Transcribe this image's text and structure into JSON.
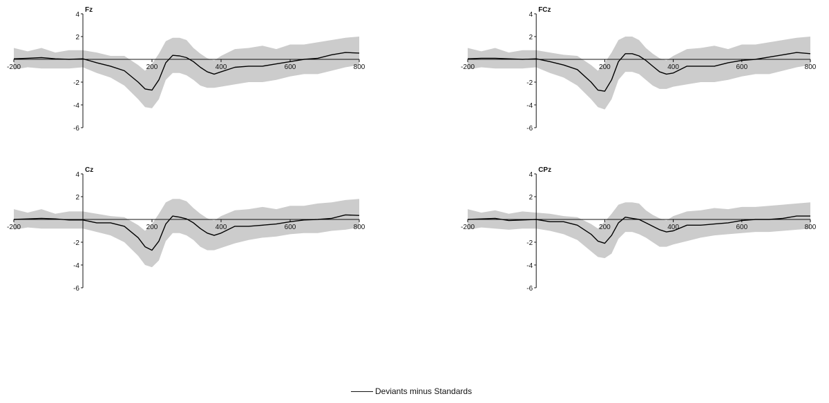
{
  "chart_data": [
    {
      "type": "line",
      "title": "Fz",
      "xlabel": "",
      "ylabel": "",
      "xlim": [
        -200,
        800
      ],
      "ylim": [
        -6,
        4
      ],
      "x_ticks": [
        -200,
        200,
        400,
        600,
        800
      ],
      "y_ticks": [
        4,
        2,
        -2,
        -4,
        -6
      ],
      "band_color": "#cccccc",
      "line_color": "#000000",
      "series": [
        {
          "x": [
            -200,
            -160,
            -120,
            -80,
            -40,
            0,
            40,
            80,
            120,
            160,
            180,
            200,
            220,
            240,
            260,
            280,
            300,
            320,
            340,
            360,
            380,
            400,
            440,
            480,
            520,
            560,
            600,
            640,
            680,
            720,
            760,
            800
          ],
          "values": [
            0.05,
            0.1,
            0.15,
            0.05,
            0.0,
            0.05,
            -0.3,
            -0.6,
            -1.0,
            -2.0,
            -2.6,
            -2.7,
            -1.8,
            -0.3,
            0.35,
            0.3,
            0.15,
            -0.2,
            -0.7,
            -1.1,
            -1.3,
            -1.1,
            -0.7,
            -0.6,
            -0.6,
            -0.4,
            -0.2,
            0.0,
            0.1,
            0.4,
            0.6,
            0.55
          ],
          "upper": [
            1.0,
            0.7,
            1.0,
            0.6,
            0.8,
            0.8,
            0.6,
            0.3,
            0.3,
            -0.5,
            -1.0,
            -0.4,
            0.5,
            1.6,
            1.9,
            1.9,
            1.7,
            1.0,
            0.5,
            0.1,
            -0.1,
            0.3,
            0.9,
            1.0,
            1.2,
            0.9,
            1.3,
            1.3,
            1.5,
            1.7,
            1.9,
            2.0
          ],
          "lower": [
            -0.9,
            -0.7,
            -0.8,
            -0.8,
            -0.8,
            -0.7,
            -1.2,
            -1.6,
            -2.3,
            -3.5,
            -4.2,
            -4.3,
            -3.5,
            -1.8,
            -1.2,
            -1.2,
            -1.4,
            -1.8,
            -2.3,
            -2.5,
            -2.5,
            -2.4,
            -2.2,
            -2.0,
            -2.0,
            -1.8,
            -1.5,
            -1.3,
            -1.3,
            -1.0,
            -0.7,
            -0.5
          ]
        }
      ]
    },
    {
      "type": "line",
      "title": "FCz",
      "xlabel": "",
      "ylabel": "",
      "xlim": [
        -200,
        800
      ],
      "ylim": [
        -6,
        4
      ],
      "x_ticks": [
        -200,
        200,
        400,
        600,
        800
      ],
      "y_ticks": [
        4,
        2,
        -2,
        -4,
        -6
      ],
      "band_color": "#cccccc",
      "line_color": "#000000",
      "series": [
        {
          "x": [
            -200,
            -160,
            -120,
            -80,
            -40,
            0,
            40,
            80,
            120,
            160,
            180,
            200,
            220,
            240,
            260,
            280,
            300,
            320,
            340,
            360,
            380,
            400,
            440,
            480,
            520,
            560,
            600,
            640,
            680,
            720,
            760,
            800
          ],
          "values": [
            0.05,
            0.1,
            0.1,
            0.05,
            0.0,
            0.05,
            -0.2,
            -0.5,
            -0.9,
            -2.0,
            -2.7,
            -2.8,
            -1.8,
            -0.2,
            0.5,
            0.5,
            0.3,
            -0.1,
            -0.6,
            -1.1,
            -1.3,
            -1.2,
            -0.6,
            -0.6,
            -0.6,
            -0.3,
            -0.1,
            0.0,
            0.2,
            0.4,
            0.6,
            0.5
          ],
          "upper": [
            1.0,
            0.7,
            1.0,
            0.6,
            0.8,
            0.8,
            0.6,
            0.4,
            0.3,
            -0.5,
            -1.0,
            -0.3,
            0.6,
            1.7,
            2.0,
            2.0,
            1.7,
            1.0,
            0.5,
            0.1,
            -0.1,
            0.3,
            0.9,
            1.0,
            1.2,
            0.9,
            1.3,
            1.3,
            1.5,
            1.7,
            1.9,
            2.0
          ],
          "lower": [
            -0.9,
            -0.7,
            -0.8,
            -0.8,
            -0.8,
            -0.7,
            -1.2,
            -1.6,
            -2.3,
            -3.5,
            -4.2,
            -4.4,
            -3.5,
            -1.8,
            -1.1,
            -1.1,
            -1.3,
            -1.8,
            -2.3,
            -2.6,
            -2.6,
            -2.4,
            -2.2,
            -2.0,
            -2.0,
            -1.8,
            -1.5,
            -1.3,
            -1.3,
            -1.0,
            -0.7,
            -0.5
          ]
        }
      ]
    },
    {
      "type": "line",
      "title": "Cz",
      "xlabel": "",
      "ylabel": "",
      "xlim": [
        -200,
        800
      ],
      "ylim": [
        -6,
        4
      ],
      "x_ticks": [
        -200,
        200,
        400,
        600,
        800
      ],
      "y_ticks": [
        4,
        2,
        -2,
        -4,
        -6
      ],
      "band_color": "#cccccc",
      "line_color": "#000000",
      "series": [
        {
          "x": [
            -200,
            -160,
            -120,
            -80,
            -40,
            0,
            40,
            80,
            120,
            160,
            180,
            200,
            220,
            240,
            260,
            280,
            300,
            320,
            340,
            360,
            380,
            400,
            440,
            480,
            520,
            560,
            600,
            640,
            680,
            720,
            760,
            800
          ],
          "values": [
            0.0,
            0.05,
            0.1,
            0.05,
            -0.05,
            -0.05,
            -0.3,
            -0.3,
            -0.6,
            -1.6,
            -2.4,
            -2.7,
            -1.9,
            -0.4,
            0.3,
            0.2,
            0.05,
            -0.3,
            -0.8,
            -1.2,
            -1.4,
            -1.2,
            -0.6,
            -0.6,
            -0.5,
            -0.4,
            -0.2,
            -0.05,
            0.0,
            0.1,
            0.4,
            0.35
          ],
          "upper": [
            0.9,
            0.6,
            0.9,
            0.5,
            0.7,
            0.7,
            0.5,
            0.3,
            0.2,
            -0.5,
            -1.0,
            -0.4,
            0.5,
            1.5,
            1.8,
            1.8,
            1.6,
            1.0,
            0.5,
            0.1,
            -0.1,
            0.3,
            0.8,
            0.9,
            1.1,
            0.9,
            1.2,
            1.2,
            1.4,
            1.5,
            1.7,
            1.8
          ],
          "lower": [
            -0.9,
            -0.7,
            -0.8,
            -0.8,
            -0.8,
            -0.8,
            -1.1,
            -1.4,
            -2.0,
            -3.2,
            -4.0,
            -4.2,
            -3.6,
            -1.9,
            -1.2,
            -1.2,
            -1.4,
            -1.8,
            -2.4,
            -2.7,
            -2.7,
            -2.5,
            -2.1,
            -1.8,
            -1.6,
            -1.5,
            -1.3,
            -1.2,
            -1.2,
            -1.0,
            -0.9,
            -0.7
          ]
        }
      ]
    },
    {
      "type": "line",
      "title": "CPz",
      "xlabel": "",
      "ylabel": "",
      "xlim": [
        -200,
        800
      ],
      "ylim": [
        -6,
        4
      ],
      "x_ticks": [
        -200,
        200,
        400,
        600,
        800
      ],
      "y_ticks": [
        4,
        2,
        -2,
        -4,
        -6
      ],
      "band_color": "#cccccc",
      "line_color": "#000000",
      "series": [
        {
          "x": [
            -200,
            -160,
            -120,
            -80,
            -40,
            0,
            40,
            80,
            120,
            160,
            180,
            200,
            220,
            240,
            260,
            280,
            300,
            320,
            340,
            360,
            380,
            400,
            440,
            480,
            520,
            560,
            600,
            640,
            680,
            720,
            760,
            800
          ],
          "values": [
            0.0,
            0.05,
            0.1,
            -0.1,
            -0.05,
            0.0,
            -0.2,
            -0.2,
            -0.5,
            -1.3,
            -1.9,
            -2.1,
            -1.4,
            -0.3,
            0.2,
            0.1,
            0.0,
            -0.3,
            -0.6,
            -0.9,
            -1.1,
            -1.0,
            -0.5,
            -0.5,
            -0.4,
            -0.3,
            -0.1,
            0.0,
            0.0,
            0.1,
            0.3,
            0.3
          ],
          "upper": [
            0.9,
            0.6,
            0.8,
            0.5,
            0.7,
            0.6,
            0.5,
            0.3,
            0.2,
            -0.4,
            -0.8,
            -0.2,
            0.5,
            1.3,
            1.5,
            1.5,
            1.4,
            0.8,
            0.4,
            0.1,
            -0.1,
            0.3,
            0.7,
            0.8,
            1.0,
            0.9,
            1.1,
            1.1,
            1.2,
            1.3,
            1.4,
            1.5
          ],
          "lower": [
            -0.9,
            -0.7,
            -0.8,
            -0.9,
            -0.8,
            -0.8,
            -1.0,
            -1.3,
            -1.8,
            -2.8,
            -3.3,
            -3.4,
            -3.0,
            -1.7,
            -1.1,
            -1.1,
            -1.3,
            -1.6,
            -2.0,
            -2.4,
            -2.4,
            -2.2,
            -1.9,
            -1.6,
            -1.4,
            -1.3,
            -1.2,
            -1.1,
            -1.1,
            -1.0,
            -0.9,
            -0.8
          ]
        }
      ]
    }
  ],
  "legend": {
    "label": "Deviants minus Standards"
  }
}
